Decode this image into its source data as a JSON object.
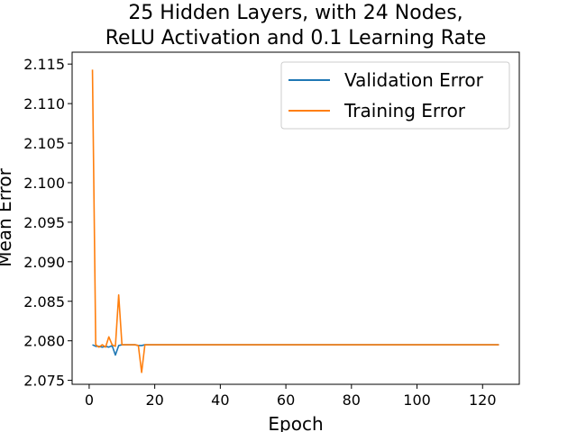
{
  "chart_data": {
    "type": "line",
    "title": [
      "25 Hidden Layers, with 24 Nodes,",
      "ReLU Activation and 0.1 Learning Rate"
    ],
    "xlabel": "Epoch",
    "ylabel": "Mean Error",
    "xlim": [
      -5.2,
      131.2
    ],
    "ylim": [
      2.0745,
      2.1165
    ],
    "xticks": [
      0,
      20,
      40,
      60,
      80,
      100,
      120
    ],
    "yticks": [
      2.075,
      2.08,
      2.085,
      2.09,
      2.095,
      2.1,
      2.105,
      2.11,
      2.115
    ],
    "ytick_format": 3,
    "legend_position": "top-right",
    "grid": false,
    "series": [
      {
        "name": "Validation Error",
        "color": "#1f77b4",
        "points": [
          [
            1,
            2.0795
          ],
          [
            2,
            2.0793
          ],
          [
            3,
            2.0793
          ],
          [
            4,
            2.0792
          ],
          [
            5,
            2.0793
          ],
          [
            6,
            2.0792
          ],
          [
            7,
            2.0794
          ],
          [
            8,
            2.0782
          ],
          [
            9,
            2.0794
          ],
          [
            10,
            2.0795
          ],
          [
            11,
            2.0795
          ],
          [
            12,
            2.0795
          ],
          [
            13,
            2.0795
          ],
          [
            14,
            2.0795
          ],
          [
            15,
            2.0794
          ],
          [
            16,
            2.0794
          ],
          [
            17,
            2.0795
          ],
          [
            125,
            2.0795
          ]
        ]
      },
      {
        "name": "Training Error",
        "color": "#ff7f0e",
        "points": [
          [
            1,
            2.1143
          ],
          [
            2,
            2.0795
          ],
          [
            3,
            2.0792
          ],
          [
            4,
            2.0795
          ],
          [
            5,
            2.0792
          ],
          [
            6,
            2.0805
          ],
          [
            7,
            2.0795
          ],
          [
            8,
            2.0793
          ],
          [
            9,
            2.0858
          ],
          [
            10,
            2.0795
          ],
          [
            11,
            2.0795
          ],
          [
            12,
            2.0795
          ],
          [
            13,
            2.0795
          ],
          [
            14,
            2.0795
          ],
          [
            15,
            2.0794
          ],
          [
            16,
            2.076
          ],
          [
            17,
            2.0795
          ],
          [
            125,
            2.0795
          ]
        ]
      }
    ]
  }
}
